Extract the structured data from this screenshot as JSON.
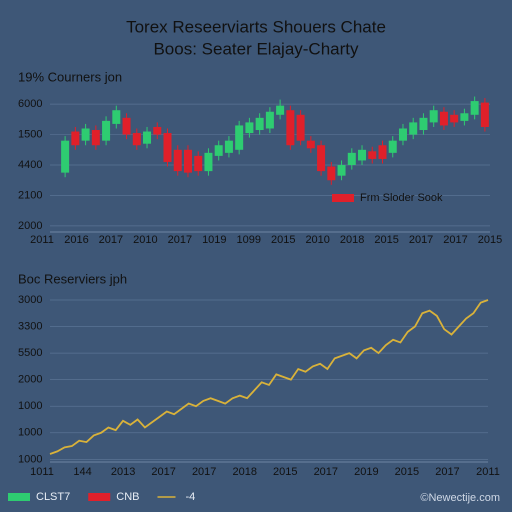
{
  "header": {
    "title": [
      "Torex Reseerviarts Shouers Chate",
      "Boos: Seater Elajay-Charty"
    ]
  },
  "chart_data": [
    {
      "type": "candlestick",
      "title": "19% Courners jon",
      "open": [
        2.75,
        4.1,
        3.8,
        4.15,
        3.8,
        4.35,
        4.55,
        4.05,
        3.7,
        4.25,
        4.05,
        3.5,
        3.5,
        3.3,
        2.8,
        3.3,
        3.4,
        3.5,
        4.05,
        4.15,
        4.2,
        4.65,
        4.8,
        4.65,
        3.8,
        3.65,
        2.95,
        2.65,
        3.0,
        3.15,
        3.45,
        3.65,
        3.4,
        3.8,
        4.0,
        4.15,
        4.4,
        4.75,
        4.65,
        4.45,
        4.65,
        5.05
      ],
      "close": [
        3.8,
        3.65,
        4.2,
        3.65,
        4.45,
        4.8,
        4.0,
        3.65,
        4.1,
        4.0,
        3.1,
        2.8,
        2.75,
        2.8,
        3.4,
        3.65,
        3.8,
        4.3,
        4.4,
        4.55,
        4.75,
        4.95,
        3.65,
        3.8,
        3.55,
        2.8,
        2.5,
        3.0,
        3.4,
        3.5,
        3.2,
        3.2,
        3.8,
        4.2,
        4.4,
        4.55,
        4.8,
        4.3,
        4.4,
        4.7,
        5.1,
        4.25
      ],
      "high": [
        3.95,
        4.25,
        4.35,
        4.3,
        4.6,
        4.95,
        4.7,
        4.2,
        4.25,
        4.4,
        4.2,
        3.65,
        3.65,
        3.45,
        3.55,
        3.8,
        3.95,
        4.45,
        4.55,
        4.7,
        4.9,
        5.15,
        4.95,
        4.8,
        3.95,
        3.8,
        3.1,
        3.15,
        3.55,
        3.65,
        3.6,
        3.8,
        3.95,
        4.35,
        4.55,
        4.7,
        4.95,
        4.9,
        4.8,
        4.85,
        5.25,
        5.2
      ],
      "low": [
        2.6,
        3.5,
        3.65,
        3.5,
        3.65,
        4.2,
        3.85,
        3.5,
        3.55,
        3.85,
        2.95,
        2.65,
        2.6,
        2.65,
        2.65,
        3.15,
        3.25,
        3.35,
        3.9,
        4.0,
        4.05,
        4.5,
        3.5,
        3.65,
        3.4,
        2.65,
        2.35,
        2.5,
        2.85,
        3.0,
        3.05,
        3.05,
        3.25,
        3.65,
        3.85,
        4.0,
        4.25,
        4.15,
        4.25,
        4.3,
        4.5,
        4.1
      ],
      "up_color": "#2ecc71",
      "down_color": "#e0202a",
      "ylim": [
        0.8,
        5.3
      ],
      "yticks": [
        {
          "value": 5,
          "label": "6000"
        },
        {
          "value": 4,
          "label": "1500"
        },
        {
          "value": 3,
          "label": "4400"
        },
        {
          "value": 2,
          "label": "2100"
        },
        {
          "value": 1,
          "label": "2000"
        }
      ],
      "x_labels": [
        "2011",
        "2016",
        "2017",
        "2010",
        "2017",
        "1019",
        "1099",
        "2015",
        "2010",
        "2018",
        "2015",
        "2017",
        "2017",
        "2015"
      ],
      "grid": true,
      "legend": [
        {
          "label": "Frm Sloder Sook",
          "color": "#e0202a"
        }
      ]
    },
    {
      "type": "line",
      "title": "Boc Reserviers jph",
      "values": [
        1.2,
        1.3,
        1.45,
        1.5,
        1.7,
        1.65,
        1.9,
        2.0,
        2.2,
        2.1,
        2.45,
        2.3,
        2.5,
        2.2,
        2.4,
        2.6,
        2.8,
        2.7,
        2.9,
        3.1,
        3.0,
        3.2,
        3.3,
        3.2,
        3.1,
        3.3,
        3.4,
        3.3,
        3.6,
        3.9,
        3.8,
        4.2,
        4.1,
        4.0,
        4.4,
        4.3,
        4.5,
        4.6,
        4.4,
        4.8,
        4.9,
        5.0,
        4.8,
        5.1,
        5.2,
        5.0,
        5.3,
        5.5,
        5.4,
        5.8,
        6.0,
        6.5,
        6.6,
        6.4,
        5.9,
        5.7,
        6.0,
        6.3,
        6.5,
        6.9,
        7.0
      ],
      "color": "#d9b23a",
      "ylim": [
        0.9,
        7.3
      ],
      "yticks": [
        {
          "value": 7,
          "label": "3000"
        },
        {
          "value": 6,
          "label": "3300"
        },
        {
          "value": 5,
          "label": "5500"
        },
        {
          "value": 4,
          "label": "2000"
        },
        {
          "value": 3,
          "label": "1000"
        },
        {
          "value": 2,
          "label": "1000"
        },
        {
          "value": 1,
          "label": "1000"
        }
      ],
      "x_labels": [
        "1011",
        "144",
        "2013",
        "2017",
        "2017",
        "2018",
        "2015",
        "2017",
        "2019",
        "2015",
        "2017",
        "2011"
      ],
      "grid": true,
      "legend": [
        {
          "label": "CLST7",
          "color": "#2ecc71"
        },
        {
          "label": "CNB",
          "color": "#e0202a"
        },
        {
          "label": "-4",
          "color": "#d9b23a"
        }
      ]
    }
  ],
  "footer": "©Newectije.com"
}
